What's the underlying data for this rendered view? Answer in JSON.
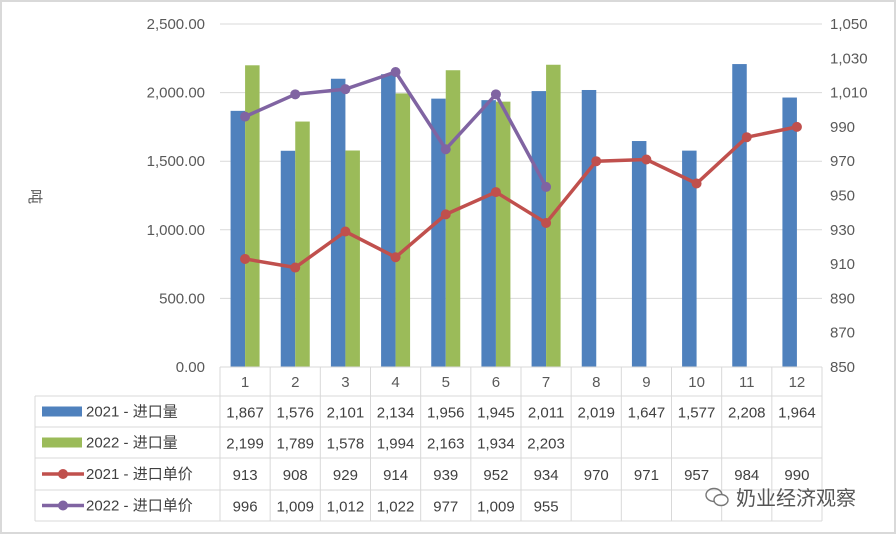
{
  "chart_data": {
    "type": "bar+line",
    "categories": [
      "1",
      "2",
      "3",
      "4",
      "5",
      "6",
      "7",
      "8",
      "9",
      "10",
      "11",
      "12"
    ],
    "ylabel": "吨",
    "ylim": [
      0,
      2500
    ],
    "y_ticks": [
      "0.00",
      "500.00",
      "1,000.00",
      "1,500.00",
      "2,000.00",
      "2,500.00"
    ],
    "y2lim": [
      850,
      1050
    ],
    "y2_ticks": [
      "850",
      "870",
      "890",
      "910",
      "930",
      "950",
      "970",
      "990",
      "1,010",
      "1,030",
      "1,050"
    ],
    "grid": true,
    "legend": "data-table",
    "series": [
      {
        "name": "2021 - 进口量",
        "kind": "bar",
        "axis": "left",
        "color": "#4f81bd",
        "values": [
          1867,
          1576,
          2101,
          2134,
          1956,
          1945,
          2011,
          2019,
          1647,
          1577,
          2208,
          1964
        ],
        "labels": [
          "1,867",
          "1,576",
          "2,101",
          "2,134",
          "1,956",
          "1,945",
          "2,011",
          "2,019",
          "1,647",
          "1,577",
          "2,208",
          "1,964"
        ]
      },
      {
        "name": "2022 - 进口量",
        "kind": "bar",
        "axis": "left",
        "color": "#9bbb59",
        "values": [
          2199,
          1789,
          1578,
          1994,
          2163,
          1934,
          2203,
          null,
          null,
          null,
          null,
          null
        ],
        "labels": [
          "2,199",
          "1,789",
          "1,578",
          "1,994",
          "2,163",
          "1,934",
          "2,203",
          "",
          "",
          "",
          "",
          ""
        ]
      },
      {
        "name": "2021 - 进口单价",
        "kind": "line",
        "axis": "right",
        "color": "#c0504d",
        "values": [
          913,
          908,
          929,
          914,
          939,
          952,
          934,
          970,
          971,
          957,
          984,
          990
        ],
        "labels": [
          "913",
          "908",
          "929",
          "914",
          "939",
          "952",
          "934",
          "970",
          "971",
          "957",
          "984",
          "990"
        ]
      },
      {
        "name": "2022 - 进口单价",
        "kind": "line",
        "axis": "right",
        "color": "#8064a2",
        "values": [
          996,
          1009,
          1012,
          1022,
          977,
          1009,
          955,
          null,
          null,
          null,
          null,
          null
        ],
        "labels": [
          "996",
          "1,009",
          "1,012",
          "1,022",
          "977",
          "1,009",
          "955",
          "",
          "",
          "",
          "",
          ""
        ]
      }
    ]
  },
  "watermark": "奶业经济观察"
}
